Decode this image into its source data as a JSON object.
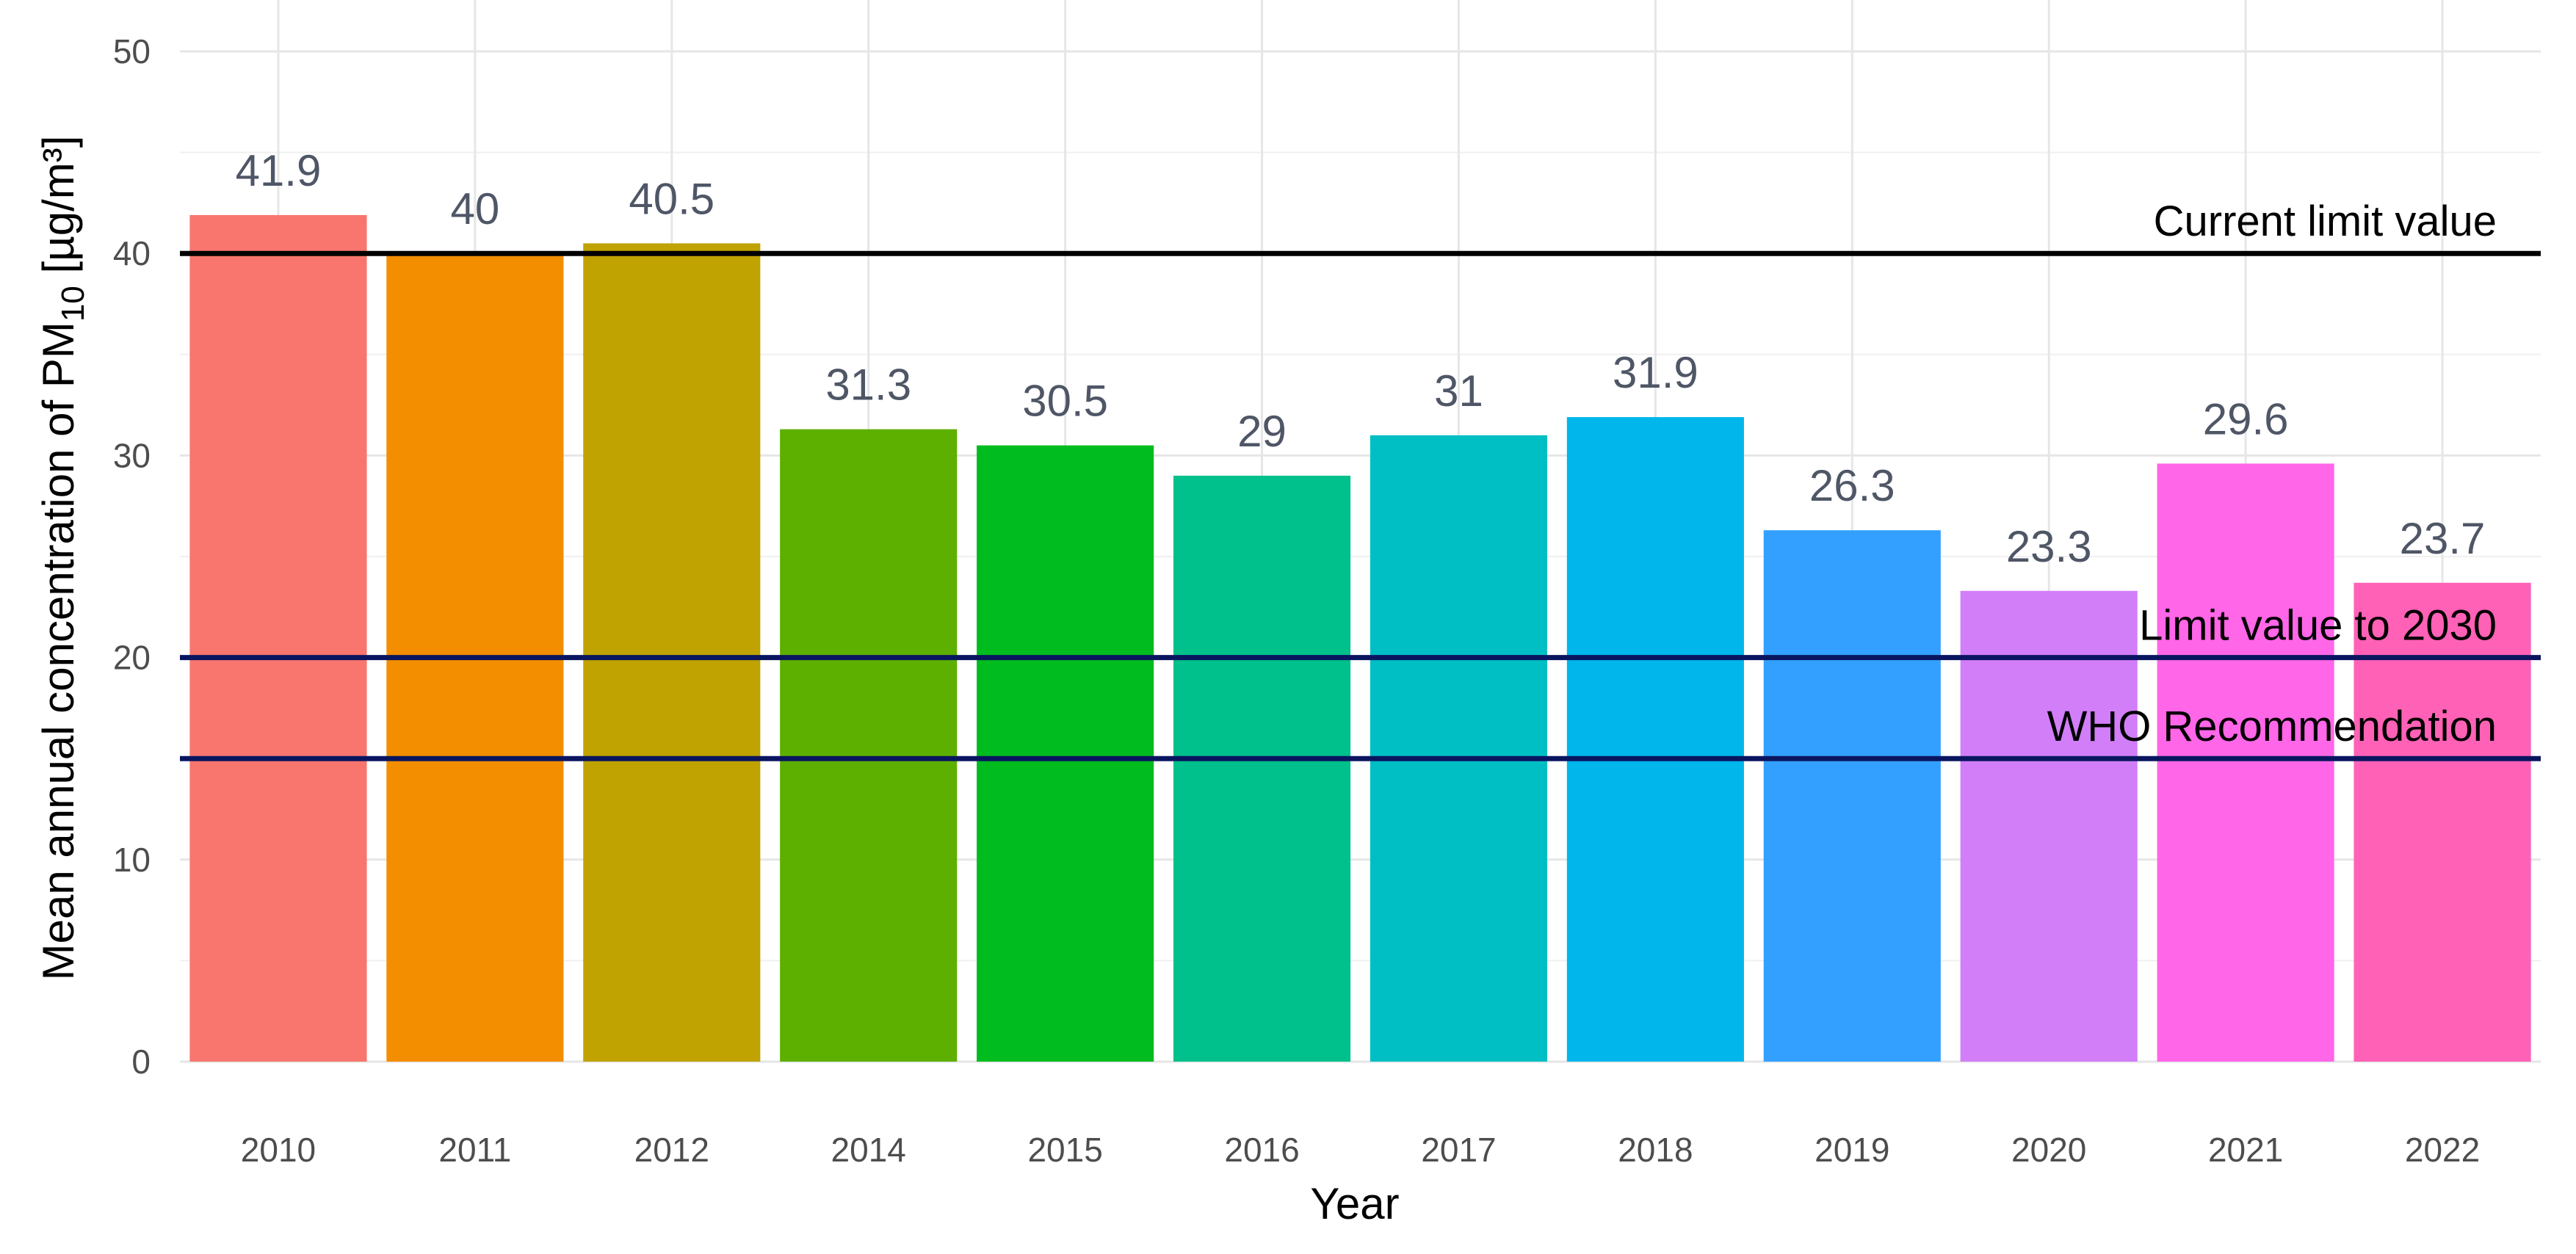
{
  "chart_data": {
    "type": "bar",
    "title": "",
    "xlabel": "Year",
    "ylabel_prefix": "Mean annual concentration of PM",
    "ylabel_subscript": "10",
    "ylabel_suffix": " [µg/m³]",
    "ylim": [
      0,
      50
    ],
    "yticks": [
      0,
      10,
      20,
      30,
      40,
      50
    ],
    "yticks_labels": [
      "0",
      "10",
      "20",
      "30",
      "40",
      "50"
    ],
    "grid": true,
    "legend": "none",
    "categories": [
      "2010",
      "2011",
      "2012",
      "2014",
      "2015",
      "2016",
      "2017",
      "2018",
      "2019",
      "2020",
      "2021",
      "2022"
    ],
    "values": [
      41.9,
      40,
      40.5,
      31.3,
      30.5,
      29,
      31,
      31.9,
      26.3,
      23.3,
      29.6,
      23.7
    ],
    "value_labels": [
      "41.9",
      "40",
      "40.5",
      "31.3",
      "30.5",
      "29",
      "31",
      "31.9",
      "26.3",
      "23.3",
      "29.6",
      "23.7"
    ],
    "bar_colors": [
      "#F8766D",
      "#F28E00",
      "#C0A200",
      "#5DB000",
      "#00BC1F",
      "#00C08B",
      "#00BFC4",
      "#00B6EB",
      "#33A0FF",
      "#D27EF8",
      "#FF66E8",
      "#FF61B6"
    ],
    "reference_lines": [
      {
        "value": 40,
        "label": "Current limit value",
        "color": "#000000"
      },
      {
        "value": 20,
        "label": "Limit value to 2030",
        "color": "#0A1560"
      },
      {
        "value": 15,
        "label": "WHO Recommendation",
        "color": "#0A1560"
      }
    ]
  }
}
